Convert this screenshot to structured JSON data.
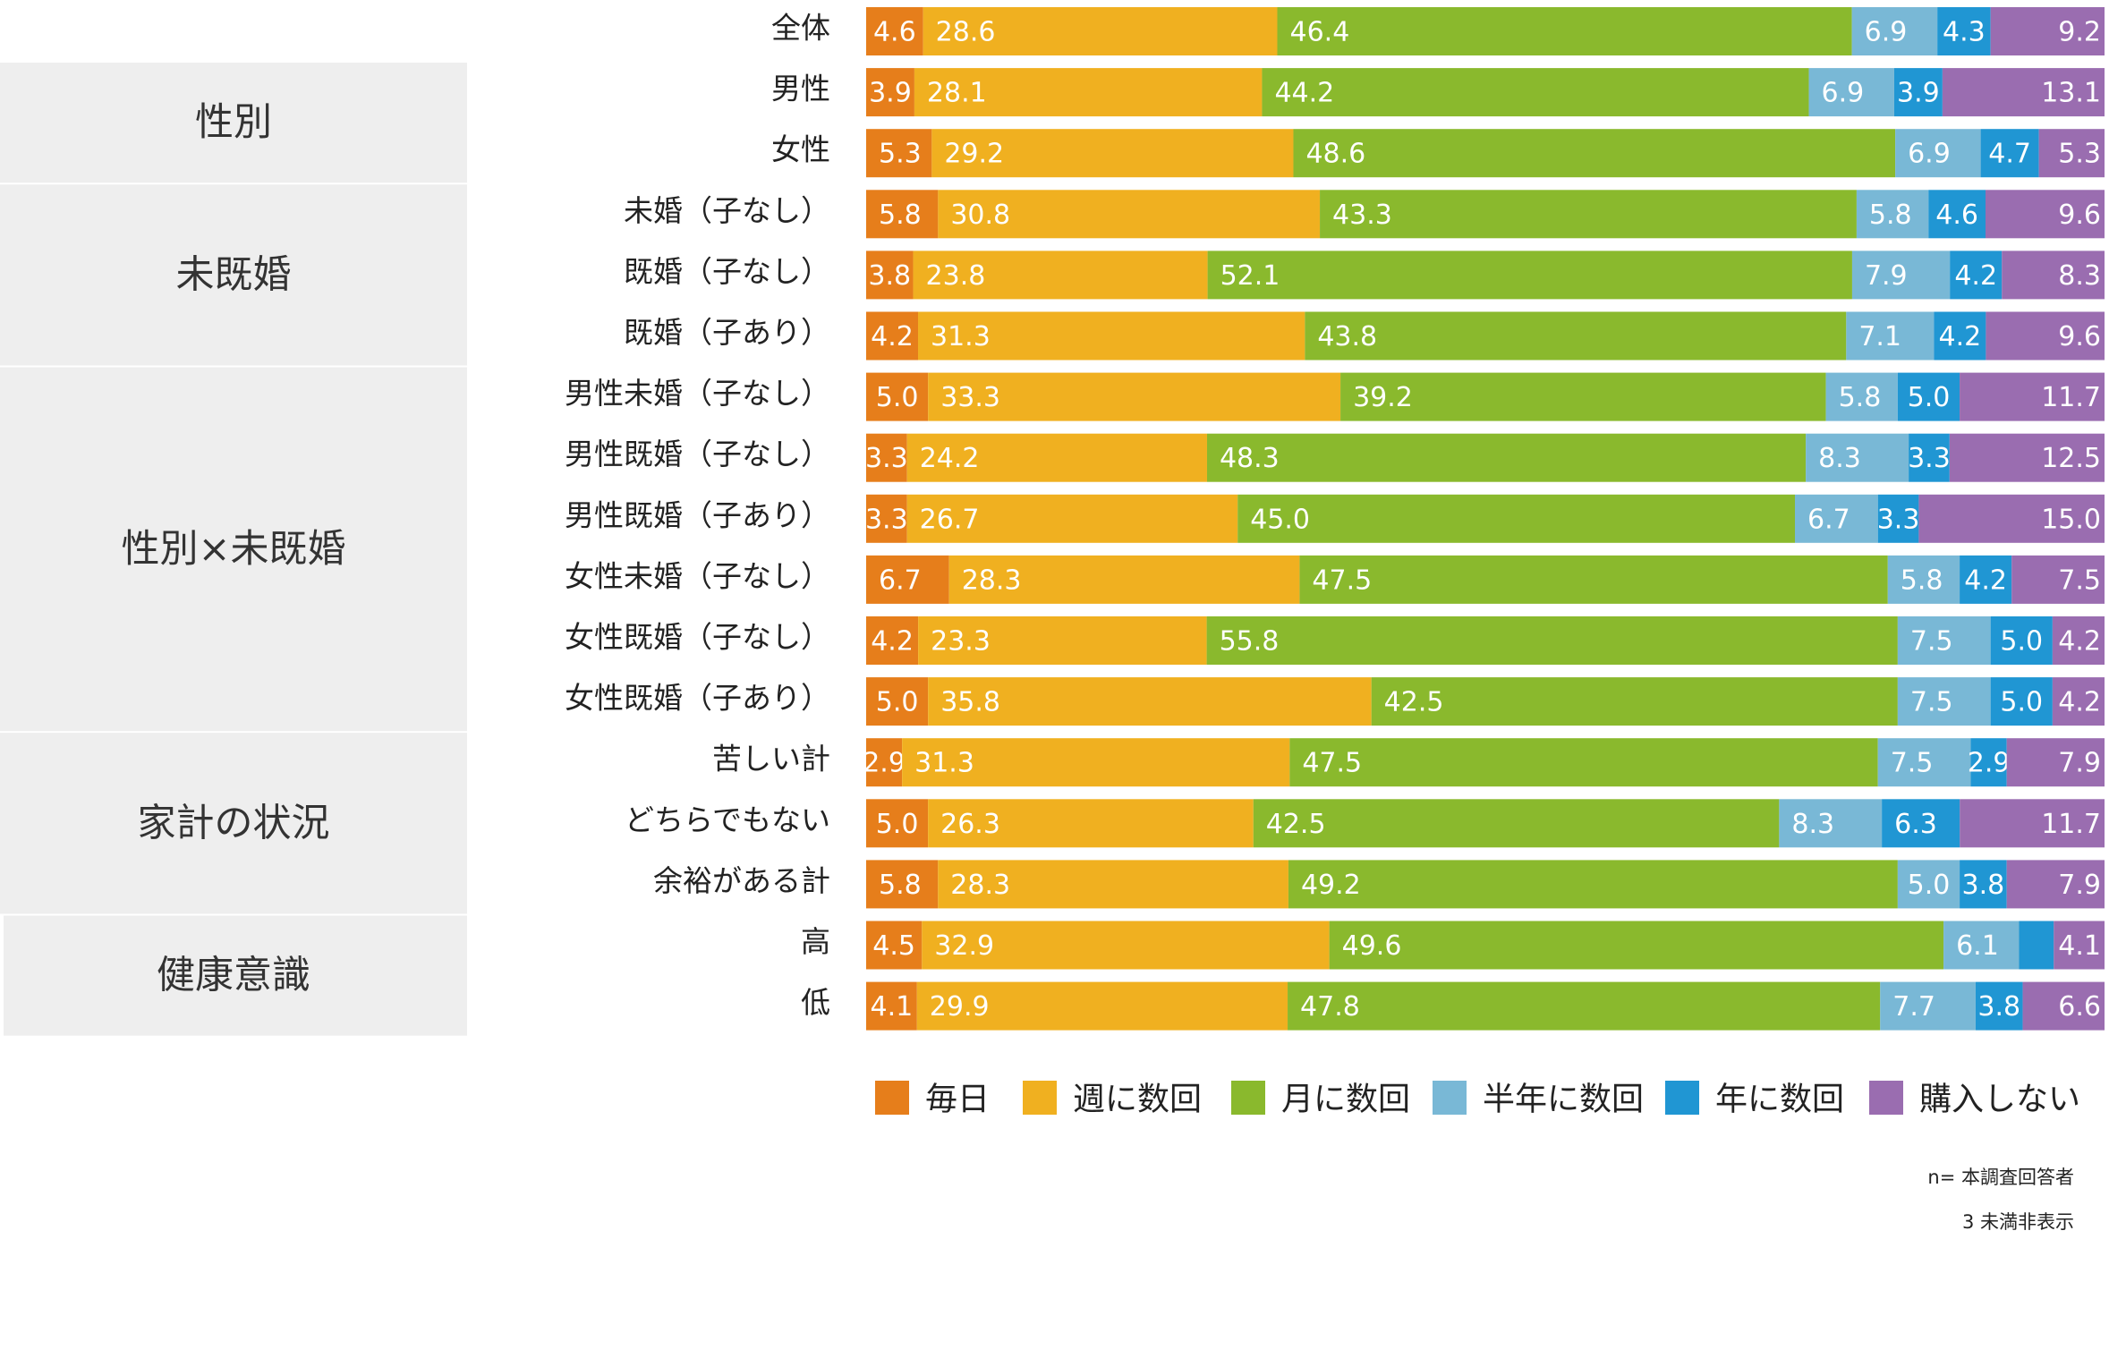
{
  "chart_data": {
    "type": "bar",
    "orientation": "horizontal",
    "stacked": true,
    "normalized": "percent",
    "categories": [
      "全体",
      "男性",
      "女性",
      "未婚（子なし）",
      "既婚（子なし）",
      "既婚（子あり）",
      "男性未婚（子なし）",
      "男性既婚（子なし）",
      "男性既婚（子あり）",
      "女性未婚（子なし）",
      "女性既婚（子なし）",
      "女性既婚（子あり）",
      "苦しい計",
      "どちらでもない",
      "余裕がある計",
      "高",
      "低"
    ],
    "groups": [
      {
        "label": "性別",
        "rows": [
          1,
          2
        ]
      },
      {
        "label": "未既婚",
        "rows": [
          3,
          5
        ]
      },
      {
        "label": "性別×未既婚",
        "rows": [
          6,
          11
        ]
      },
      {
        "label": "家計の状況",
        "rows": [
          12,
          14
        ]
      },
      {
        "label": "健康意識",
        "rows": [
          15,
          16
        ]
      }
    ],
    "series": [
      {
        "name": "毎日",
        "color": "#e67e1b",
        "values": [
          4.6,
          3.9,
          5.3,
          5.8,
          3.8,
          4.2,
          5.0,
          3.3,
          3.3,
          6.7,
          4.2,
          5.0,
          2.9,
          5.0,
          5.8,
          4.5,
          4.1
        ]
      },
      {
        "name": "週に数回",
        "color": "#f0b020",
        "values": [
          28.6,
          28.1,
          29.2,
          30.8,
          23.8,
          31.3,
          33.3,
          24.2,
          26.7,
          28.3,
          23.3,
          35.8,
          31.3,
          26.3,
          28.3,
          32.9,
          29.9
        ]
      },
      {
        "name": "月に数回",
        "color": "#8ab92d",
        "values": [
          46.4,
          44.2,
          48.6,
          43.3,
          52.1,
          43.8,
          39.2,
          48.3,
          45.0,
          47.5,
          55.8,
          42.5,
          47.5,
          42.5,
          49.2,
          49.6,
          47.8
        ]
      },
      {
        "name": "半年に数回",
        "color": "#79b8d6",
        "values": [
          6.9,
          6.9,
          6.9,
          5.8,
          7.9,
          7.1,
          5.8,
          8.3,
          6.7,
          5.8,
          7.5,
          7.5,
          7.5,
          8.3,
          5.0,
          6.1,
          7.7
        ]
      },
      {
        "name": "年に数回",
        "color": "#2096d3",
        "values": [
          4.3,
          3.9,
          4.7,
          4.6,
          4.2,
          4.2,
          5.0,
          3.3,
          3.3,
          4.2,
          5.0,
          5.0,
          2.9,
          6.3,
          3.8,
          2.8,
          3.8
        ]
      },
      {
        "name": "購入しない",
        "color": "#9a6db0",
        "values": [
          9.2,
          13.1,
          5.3,
          9.6,
          8.3,
          9.6,
          11.7,
          12.5,
          15.0,
          7.5,
          4.2,
          4.2,
          7.9,
          11.7,
          7.9,
          4.1,
          6.6
        ]
      }
    ],
    "hidden_labels": [
      {
        "series": 4,
        "row": 15
      }
    ],
    "xlim": [
      0,
      100
    ],
    "legend_position": "bottom",
    "notes": [
      "n= 本調査回答者",
      "3 未満非表示"
    ]
  }
}
